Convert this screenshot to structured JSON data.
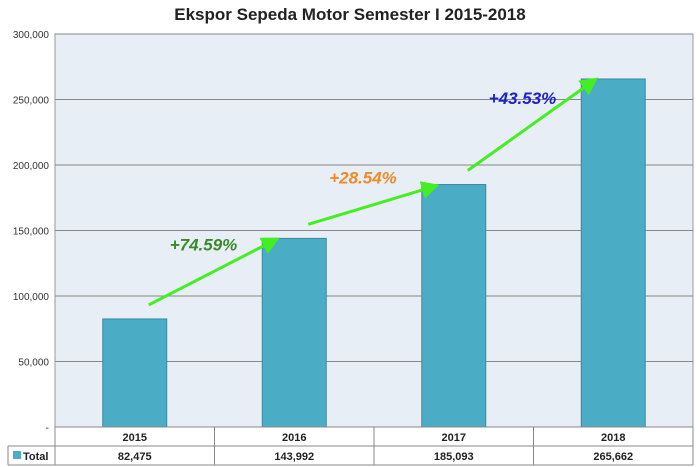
{
  "chart_data": {
    "type": "bar",
    "title": "Ekspor Sepeda Motor Semester I 2015-2018",
    "categories": [
      "2015",
      "2016",
      "2017",
      "2018"
    ],
    "series": [
      {
        "name": "Total",
        "values": [
          82475,
          143992,
          185093,
          265662
        ],
        "color": "#4bacc6"
      }
    ],
    "value_labels": [
      "82,475",
      "143,992",
      "185,093",
      "265,662"
    ],
    "ylim": [
      0,
      300000
    ],
    "yticks": [
      0,
      50000,
      100000,
      150000,
      200000,
      250000,
      300000
    ],
    "ytick_labels": [
      "-",
      "50,000",
      "100,000",
      "150,000",
      "200,000",
      "250,000",
      "300,000"
    ],
    "grid": true,
    "legend": "data-table",
    "annotations": [
      {
        "text": "+74.59%",
        "color": "#3a8a2a",
        "from": "2015",
        "to": "2016"
      },
      {
        "text": "+28.54%",
        "color": "#f08a24",
        "from": "2016",
        "to": "2017"
      },
      {
        "text": "+43.53%",
        "color": "#1f22c8",
        "from": "2017",
        "to": "2018"
      }
    ],
    "arrow_color": "#44ee22",
    "plot_background": "#e8eef5"
  }
}
